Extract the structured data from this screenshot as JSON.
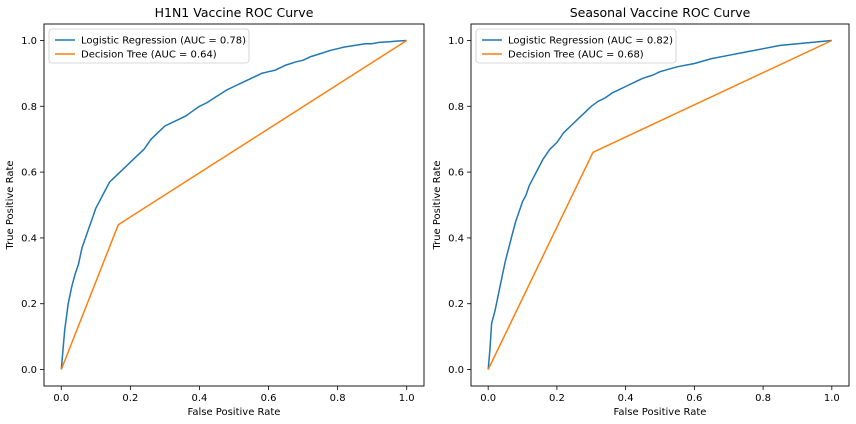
{
  "chart_data": [
    {
      "type": "line",
      "title": "H1N1 Vaccine ROC Curve",
      "xlabel": "False Positive Rate",
      "ylabel": "True Positive Rate",
      "xlim": [
        -0.05,
        1.05
      ],
      "ylim": [
        -0.05,
        1.05
      ],
      "xticks": [
        "0.0",
        "0.2",
        "0.4",
        "0.6",
        "0.8",
        "1.0"
      ],
      "yticks": [
        "0.0",
        "0.2",
        "0.4",
        "0.6",
        "0.8",
        "1.0"
      ],
      "grid": false,
      "legend_position": "top-left",
      "series": [
        {
          "name": "Logistic Regression (AUC = 0.78)",
          "color": "#1f77b4",
          "x": [
            0,
            0.005,
            0.01,
            0.02,
            0.03,
            0.04,
            0.05,
            0.06,
            0.07,
            0.08,
            0.09,
            0.1,
            0.11,
            0.12,
            0.13,
            0.14,
            0.15,
            0.16,
            0.18,
            0.2,
            0.22,
            0.24,
            0.26,
            0.28,
            0.3,
            0.32,
            0.34,
            0.36,
            0.38,
            0.4,
            0.42,
            0.45,
            0.48,
            0.5,
            0.52,
            0.55,
            0.58,
            0.6,
            0.62,
            0.65,
            0.68,
            0.7,
            0.72,
            0.75,
            0.78,
            0.8,
            0.82,
            0.85,
            0.88,
            0.9,
            0.92,
            0.95,
            0.97,
            1.0
          ],
          "y": [
            0,
            0.06,
            0.12,
            0.2,
            0.25,
            0.29,
            0.32,
            0.37,
            0.4,
            0.43,
            0.46,
            0.49,
            0.51,
            0.53,
            0.55,
            0.57,
            0.58,
            0.59,
            0.61,
            0.63,
            0.65,
            0.67,
            0.7,
            0.72,
            0.74,
            0.75,
            0.76,
            0.77,
            0.785,
            0.8,
            0.81,
            0.83,
            0.85,
            0.86,
            0.87,
            0.885,
            0.9,
            0.905,
            0.91,
            0.925,
            0.935,
            0.94,
            0.95,
            0.96,
            0.97,
            0.975,
            0.98,
            0.985,
            0.99,
            0.99,
            0.994,
            0.996,
            0.998,
            1.0
          ]
        },
        {
          "name": "Decision Tree (AUC = 0.64)",
          "color": "#ff7f0e",
          "x": [
            0,
            0.165,
            1.0
          ],
          "y": [
            0,
            0.44,
            1.0
          ]
        }
      ]
    },
    {
      "type": "line",
      "title": "Seasonal Vaccine ROC Curve",
      "xlabel": "False Positive Rate",
      "ylabel": "True Positive Rate",
      "xlim": [
        -0.05,
        1.05
      ],
      "ylim": [
        -0.05,
        1.05
      ],
      "xticks": [
        "0.0",
        "0.2",
        "0.4",
        "0.6",
        "0.8",
        "1.0"
      ],
      "yticks": [
        "0.0",
        "0.2",
        "0.4",
        "0.6",
        "0.8",
        "1.0"
      ],
      "grid": false,
      "legend_position": "top-left",
      "series": [
        {
          "name": "Logistic Regression (AUC = 0.82)",
          "color": "#1f77b4",
          "x": [
            0,
            0.005,
            0.01,
            0.02,
            0.03,
            0.04,
            0.05,
            0.06,
            0.07,
            0.08,
            0.09,
            0.1,
            0.11,
            0.12,
            0.13,
            0.14,
            0.15,
            0.16,
            0.18,
            0.2,
            0.22,
            0.24,
            0.26,
            0.28,
            0.3,
            0.32,
            0.34,
            0.36,
            0.38,
            0.4,
            0.42,
            0.45,
            0.48,
            0.5,
            0.55,
            0.6,
            0.65,
            0.7,
            0.75,
            0.8,
            0.85,
            0.9,
            0.95,
            1.0
          ],
          "y": [
            0,
            0.06,
            0.14,
            0.18,
            0.23,
            0.28,
            0.33,
            0.37,
            0.41,
            0.45,
            0.48,
            0.51,
            0.53,
            0.56,
            0.58,
            0.6,
            0.62,
            0.64,
            0.67,
            0.69,
            0.72,
            0.74,
            0.76,
            0.78,
            0.8,
            0.815,
            0.825,
            0.84,
            0.85,
            0.86,
            0.87,
            0.885,
            0.895,
            0.905,
            0.92,
            0.93,
            0.945,
            0.955,
            0.965,
            0.975,
            0.985,
            0.99,
            0.995,
            1.0
          ]
        },
        {
          "name": "Decision Tree (AUC = 0.68)",
          "color": "#ff7f0e",
          "x": [
            0,
            0.305,
            1.0
          ],
          "y": [
            0,
            0.66,
            1.0
          ]
        }
      ]
    }
  ]
}
